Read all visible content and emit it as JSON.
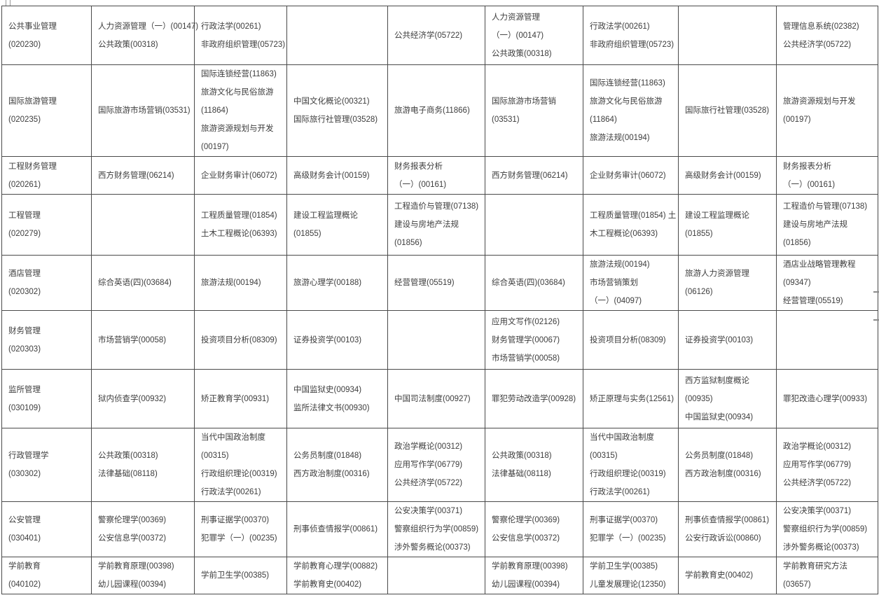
{
  "page": {
    "background_color": "#ffffff",
    "border_color": "#4a4a4a",
    "text_color": "#3d3d3d",
    "description": "exam course schedule grid"
  },
  "table": {
    "rows": [
      {
        "major": {
          "name": "公共事业管理",
          "code": "(020230)"
        },
        "cells": [
          [
            "人力资源管理（一）(00147)",
            "公共政策(00318)"
          ],
          [
            "行政法学(00261)",
            "非政府组织管理(05723)"
          ],
          [],
          [
            "公共经济学(05722)"
          ],
          [
            "人力资源管理",
            "（一）(00147)",
            "公共政策(00318)"
          ],
          [
            "行政法学(00261)",
            "非政府组织管理(05723)"
          ],
          [],
          [
            "管理信息系统(02382)",
            "公共经济学(05722)"
          ]
        ]
      },
      {
        "major": {
          "name": "国际旅游管理",
          "code": "(020235)"
        },
        "cells": [
          [
            "国际旅游市场营销(03531)"
          ],
          [
            "国际连锁经营(11863)",
            "旅游文化与民俗旅游",
            "(11864)",
            "旅游资源规划与开发",
            "(00197)"
          ],
          [
            "中国文化概论(00321)",
            "国际旅行社管理(03528)"
          ],
          [
            "旅游电子商务(11866)"
          ],
          [
            "国际旅游市场营销",
            "(03531)"
          ],
          [
            "国际连锁经营(11863)",
            "旅游文化与民俗旅游",
            "(11864)",
            "旅游法规(00194)"
          ],
          [
            "国际旅行社管理(03528)"
          ],
          [
            "旅游资源规划与开发",
            "(00197)"
          ]
        ]
      },
      {
        "major": {
          "name": "工程财务管理",
          "code": "(020261)"
        },
        "cells": [
          [
            "西方财务管理(06214)"
          ],
          [
            "企业财务审计(06072)"
          ],
          [
            "高级财务会计(00159)"
          ],
          [
            "财务报表分析",
            "（一）(00161)"
          ],
          [
            "西方财务管理(06214)"
          ],
          [
            "企业财务审计(06072)"
          ],
          [
            "高级财务会计(00159)"
          ],
          [
            "财务报表分析",
            "（一）(00161)"
          ]
        ]
      },
      {
        "major": {
          "name": "工程管理",
          "code": "(020279)"
        },
        "cells": [
          [],
          [
            "工程质量管理(01854)",
            "土木工程概论(06393)"
          ],
          [
            "建设工程监理概论",
            "(01855)"
          ],
          [
            "工程造价与管理(07138)",
            "建设与房地产法规",
            "(01856)"
          ],
          [],
          [
            "工程质量管理(01854) 土",
            "木工程概论(06393)"
          ],
          [
            "建设工程监理概论",
            "(01855)"
          ],
          [
            "工程造价与管理(07138)",
            "建设与房地产法规",
            "(01856)"
          ]
        ]
      },
      {
        "major": {
          "name": "酒店管理",
          "code": "(020302)"
        },
        "cells": [
          [
            "综合英语(四)(03684)"
          ],
          [
            "旅游法规(00194)"
          ],
          [
            "旅游心理学(00188)"
          ],
          [
            "经营管理(05519)"
          ],
          [
            "综合英语(四)(03684)"
          ],
          [
            "旅游法规(00194)",
            "市场营销策划",
            "（一）(04097)"
          ],
          [
            "旅游人力资源管理",
            "(06126)"
          ],
          [
            "酒店业战略管理教程",
            "(09347)",
            "经营管理(05519)"
          ]
        ]
      },
      {
        "major": {
          "name": "财务管理",
          "code": "(020303)"
        },
        "cells": [
          [
            "市场营销学(00058)"
          ],
          [
            "投资项目分析(08309)"
          ],
          [
            "证券投资学(00103)"
          ],
          [],
          [
            "应用文写作(02126)",
            "财务管理学(00067)",
            "市场营销学(00058)"
          ],
          [
            "投资项目分析(08309)"
          ],
          [
            "证券投资学(00103)"
          ],
          []
        ]
      },
      {
        "major": {
          "name": "监所管理",
          "code": "(030109)"
        },
        "cells": [
          [
            "狱内侦查学(00932)"
          ],
          [
            "矫正教育学(00931)"
          ],
          [
            "中国监狱史(00934)",
            "监所法律文书(00930)"
          ],
          [
            "中国司法制度(00927)"
          ],
          [
            "罪犯劳动改造学(00928)"
          ],
          [
            "矫正原理与实务(12561)"
          ],
          [
            "西方监狱制度概论",
            "(00935)",
            "中国监狱史(00934)"
          ],
          [
            "罪犯改造心理学(00933)"
          ]
        ]
      },
      {
        "major": {
          "name": "行政管理学",
          "code": "(030302)"
        },
        "cells": [
          [
            "公共政策(00318)",
            "法律基础(08118)"
          ],
          [
            "当代中国政治制度",
            "(00315)",
            "行政组织理论(00319)",
            "行政法学(00261)"
          ],
          [
            "公务员制度(01848)",
            "西方政治制度(00316)"
          ],
          [
            "政治学概论(00312)",
            "应用写作学(06779)",
            "公共经济学(05722)"
          ],
          [
            "公共政策(00318)",
            "法律基础(08118)"
          ],
          [
            "当代中国政治制度",
            "(00315)",
            "行政组织理论(00319)",
            "行政法学(00261)"
          ],
          [
            "公务员制度(01848)",
            "西方政治制度(00316)"
          ],
          [
            "政治学概论(00312)",
            "应用写作学(06779)",
            "公共经济学(05722)"
          ]
        ]
      },
      {
        "major": {
          "name": "公安管理",
          "code": "(030401)"
        },
        "cells": [
          [
            "警察伦理学(00369)",
            "公安信息学(00372)"
          ],
          [
            "刑事证据学(00370)",
            "犯罪学（一）(00235)"
          ],
          [
            "刑事侦查情报学(00861)"
          ],
          [
            "公安决策学(00371)",
            "警察组织行为学(00859)",
            "涉外警务概论(00373)"
          ],
          [
            "警察伦理学(00369)",
            "公安信息学(00372)"
          ],
          [
            "刑事证据学(00370)",
            "犯罪学（一）(00235)"
          ],
          [
            "刑事侦查情报学(00861)",
            "公安行政诉讼(00860)"
          ],
          [
            "公安决策学(00371)",
            "警察组织行为学(00859)",
            "涉外警务概论(00373)"
          ]
        ]
      },
      {
        "major": {
          "name": "学前教育",
          "code": "(040102)"
        },
        "cells": [
          [
            "学前教育原理(00398)",
            "幼儿园课程(00394)"
          ],
          [
            "学前卫生学(00385)"
          ],
          [
            "学前教育心理学(00882)",
            "学前教育史(00402)"
          ],
          [],
          [
            "学前教育原理(00398)",
            "幼儿园课程(00394)"
          ],
          [
            "学前卫生学(00385)",
            "儿童发展理论(12350)"
          ],
          [
            "学前教育史(00402)"
          ],
          [
            "学前教育研究方法",
            "(03657)"
          ]
        ]
      }
    ]
  }
}
